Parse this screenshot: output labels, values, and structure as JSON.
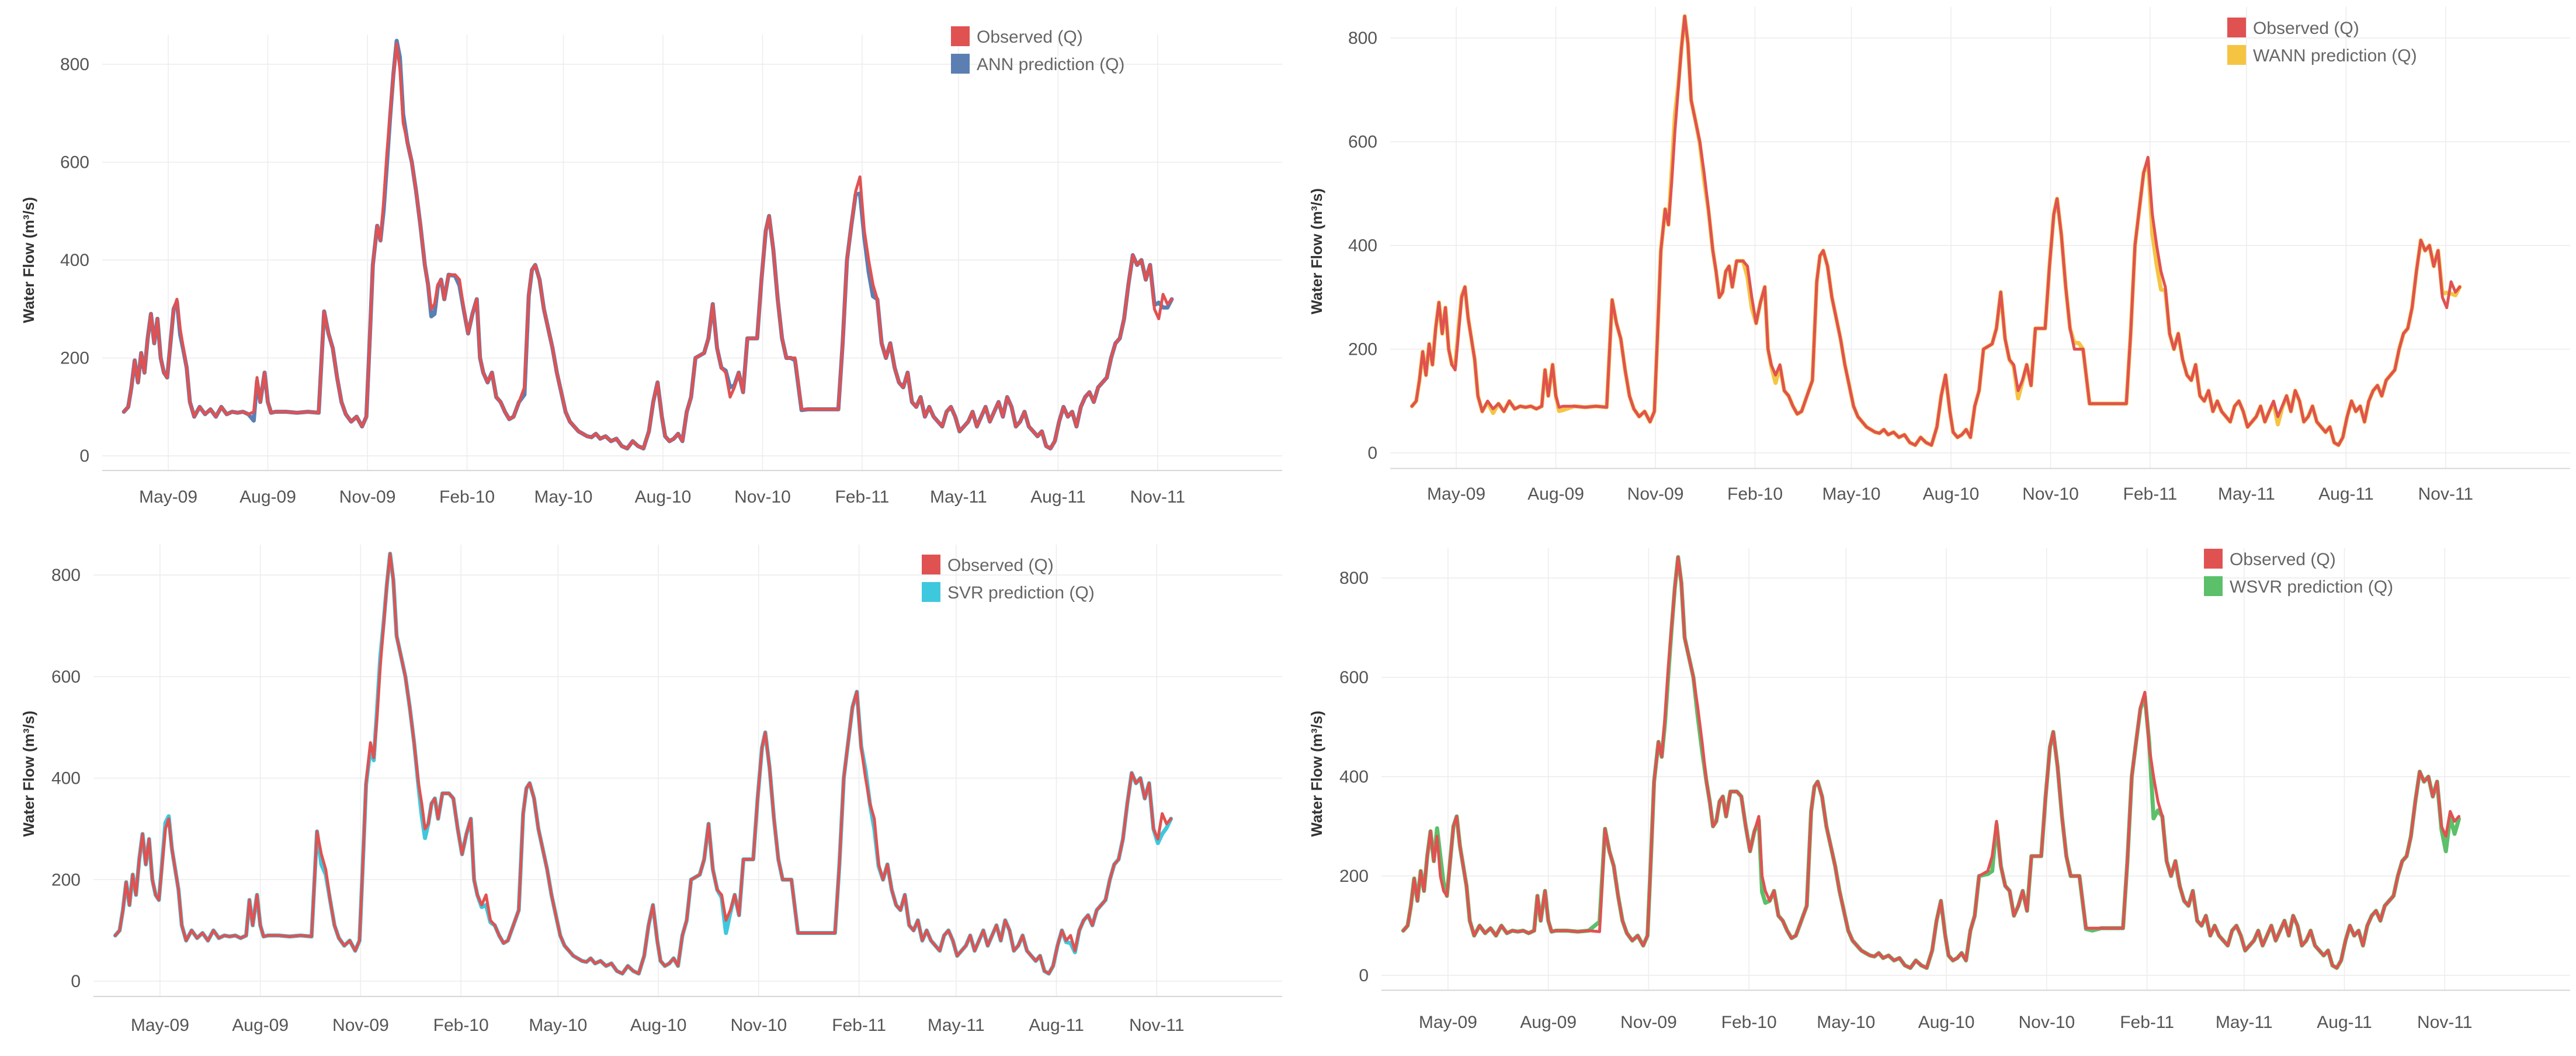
{
  "figure": {
    "background": "#ffffff"
  },
  "chart_data": [
    {
      "type": "line",
      "panel": "top-left",
      "title": "",
      "xlabel": "",
      "ylabel": "Water Flow (m³/s)",
      "ylim": [
        -30,
        860
      ],
      "yticks": [
        0,
        200,
        400,
        600,
        800
      ],
      "xlim": [
        0,
        1090
      ],
      "x_unit": "days since 2009-03-01",
      "xticks": [
        {
          "x": 61,
          "label": "May-09"
        },
        {
          "x": 153,
          "label": "Aug-09"
        },
        {
          "x": 245,
          "label": "Nov-09"
        },
        {
          "x": 337,
          "label": "Feb-10"
        },
        {
          "x": 426,
          "label": "May-10"
        },
        {
          "x": 518,
          "label": "Aug-10"
        },
        {
          "x": 610,
          "label": "Nov-10"
        },
        {
          "x": 702,
          "label": "Feb-11"
        },
        {
          "x": 791,
          "label": "May-11"
        },
        {
          "x": 883,
          "label": "Aug-11"
        },
        {
          "x": 975,
          "label": "Nov-11"
        }
      ],
      "legend": "top-right",
      "series": [
        {
          "name": "Observed (Q)",
          "color": "#e05252",
          "role": "observed"
        },
        {
          "name": "ANN prediction (Q)",
          "color": "#5b7fb2",
          "role": "prediction"
        }
      ]
    },
    {
      "type": "line",
      "panel": "top-right",
      "title": "",
      "xlabel": "",
      "ylabel": "Water Flow (m³/s)",
      "ylim": [
        -30,
        860
      ],
      "yticks": [
        0,
        200,
        400,
        600,
        800
      ],
      "xlim": [
        0,
        1090
      ],
      "x_unit": "days since 2009-03-01",
      "xticks": [
        {
          "x": 61,
          "label": "May-09"
        },
        {
          "x": 153,
          "label": "Aug-09"
        },
        {
          "x": 245,
          "label": "Nov-09"
        },
        {
          "x": 337,
          "label": "Feb-10"
        },
        {
          "x": 426,
          "label": "May-10"
        },
        {
          "x": 518,
          "label": "Aug-10"
        },
        {
          "x": 610,
          "label": "Nov-10"
        },
        {
          "x": 702,
          "label": "Feb-11"
        },
        {
          "x": 791,
          "label": "May-11"
        },
        {
          "x": 883,
          "label": "Aug-11"
        },
        {
          "x": 975,
          "label": "Nov-11"
        }
      ],
      "legend": "top-right",
      "series": [
        {
          "name": "Observed (Q)",
          "color": "#e05252",
          "role": "observed"
        },
        {
          "name": "WANN prediction (Q)",
          "color": "#f5c443",
          "role": "prediction"
        }
      ]
    },
    {
      "type": "line",
      "panel": "bottom-left",
      "title": "",
      "xlabel": "",
      "ylabel": "Water Flow (m³/s)",
      "ylim": [
        -30,
        860
      ],
      "yticks": [
        0,
        200,
        400,
        600,
        800
      ],
      "xlim": [
        0,
        1090
      ],
      "x_unit": "days since 2009-03-01",
      "xticks": [
        {
          "x": 61,
          "label": "May-09"
        },
        {
          "x": 153,
          "label": "Aug-09"
        },
        {
          "x": 245,
          "label": "Nov-09"
        },
        {
          "x": 337,
          "label": "Feb-10"
        },
        {
          "x": 426,
          "label": "May-10"
        },
        {
          "x": 518,
          "label": "Aug-10"
        },
        {
          "x": 610,
          "label": "Nov-10"
        },
        {
          "x": 702,
          "label": "Feb-11"
        },
        {
          "x": 791,
          "label": "May-11"
        },
        {
          "x": 883,
          "label": "Aug-11"
        },
        {
          "x": 975,
          "label": "Nov-11"
        }
      ],
      "legend": "top-right",
      "series": [
        {
          "name": "Observed (Q)",
          "color": "#e05252",
          "role": "observed"
        },
        {
          "name": "SVR prediction (Q)",
          "color": "#3ec8dd",
          "role": "prediction"
        }
      ]
    },
    {
      "type": "line",
      "panel": "bottom-right",
      "title": "",
      "xlabel": "",
      "ylabel": "Water Flow (m³/s)",
      "ylim": [
        -30,
        860
      ],
      "yticks": [
        0,
        200,
        400,
        600,
        800
      ],
      "xlim": [
        0,
        1090
      ],
      "x_unit": "days since 2009-03-01",
      "xticks": [
        {
          "x": 61,
          "label": "May-09"
        },
        {
          "x": 153,
          "label": "Aug-09"
        },
        {
          "x": 245,
          "label": "Nov-09"
        },
        {
          "x": 337,
          "label": "Feb-10"
        },
        {
          "x": 426,
          "label": "May-10"
        },
        {
          "x": 518,
          "label": "Aug-10"
        },
        {
          "x": 610,
          "label": "Nov-10"
        },
        {
          "x": 702,
          "label": "Feb-11"
        },
        {
          "x": 791,
          "label": "May-11"
        },
        {
          "x": 883,
          "label": "Aug-11"
        },
        {
          "x": 975,
          "label": "Nov-11"
        }
      ],
      "legend": "top-right",
      "series": [
        {
          "name": "Observed (Q)",
          "color": "#e05252",
          "role": "observed"
        },
        {
          "name": "WSVR prediction (Q)",
          "color": "#5cbf6a",
          "role": "prediction"
        }
      ]
    }
  ],
  "observed_series": {
    "x_unit": "days since 2009-03-01",
    "points": [
      [
        20,
        90
      ],
      [
        24,
        100
      ],
      [
        27,
        140
      ],
      [
        30,
        195
      ],
      [
        33,
        150
      ],
      [
        36,
        210
      ],
      [
        39,
        170
      ],
      [
        42,
        240
      ],
      [
        45,
        290
      ],
      [
        48,
        230
      ],
      [
        51,
        280
      ],
      [
        54,
        200
      ],
      [
        57,
        170
      ],
      [
        60,
        160
      ],
      [
        63,
        230
      ],
      [
        66,
        300
      ],
      [
        69,
        320
      ],
      [
        72,
        260
      ],
      [
        75,
        220
      ],
      [
        78,
        180
      ],
      [
        81,
        110
      ],
      [
        85,
        80
      ],
      [
        90,
        100
      ],
      [
        95,
        85
      ],
      [
        100,
        95
      ],
      [
        105,
        80
      ],
      [
        110,
        100
      ],
      [
        115,
        85
      ],
      [
        120,
        90
      ],
      [
        125,
        88
      ],
      [
        130,
        90
      ],
      [
        135,
        85
      ],
      [
        140,
        90
      ],
      [
        143,
        160
      ],
      [
        146,
        110
      ],
      [
        150,
        170
      ],
      [
        153,
        110
      ],
      [
        156,
        88
      ],
      [
        160,
        90
      ],
      [
        170,
        90
      ],
      [
        180,
        88
      ],
      [
        190,
        90
      ],
      [
        200,
        88
      ],
      [
        205,
        295
      ],
      [
        209,
        250
      ],
      [
        213,
        220
      ],
      [
        217,
        160
      ],
      [
        221,
        110
      ],
      [
        225,
        85
      ],
      [
        230,
        70
      ],
      [
        235,
        80
      ],
      [
        240,
        60
      ],
      [
        244,
        80
      ],
      [
        247,
        230
      ],
      [
        250,
        390
      ],
      [
        254,
        470
      ],
      [
        257,
        440
      ],
      [
        260,
        520
      ],
      [
        263,
        620
      ],
      [
        266,
        700
      ],
      [
        269,
        780
      ],
      [
        272,
        842
      ],
      [
        275,
        790
      ],
      [
        278,
        680
      ],
      [
        282,
        640
      ],
      [
        286,
        600
      ],
      [
        290,
        540
      ],
      [
        294,
        470
      ],
      [
        298,
        390
      ],
      [
        301,
        350
      ],
      [
        304,
        300
      ],
      [
        307,
        310
      ],
      [
        310,
        350
      ],
      [
        313,
        360
      ],
      [
        316,
        320
      ],
      [
        320,
        370
      ],
      [
        326,
        370
      ],
      [
        330,
        360
      ],
      [
        334,
        300
      ],
      [
        338,
        250
      ],
      [
        342,
        290
      ],
      [
        346,
        320
      ],
      [
        349,
        200
      ],
      [
        352,
        170
      ],
      [
        356,
        150
      ],
      [
        360,
        170
      ],
      [
        364,
        120
      ],
      [
        368,
        110
      ],
      [
        372,
        90
      ],
      [
        376,
        75
      ],
      [
        380,
        80
      ],
      [
        385,
        110
      ],
      [
        390,
        140
      ],
      [
        394,
        330
      ],
      [
        397,
        380
      ],
      [
        400,
        390
      ],
      [
        404,
        360
      ],
      [
        408,
        300
      ],
      [
        412,
        260
      ],
      [
        416,
        220
      ],
      [
        420,
        170
      ],
      [
        424,
        130
      ],
      [
        428,
        90
      ],
      [
        432,
        70
      ],
      [
        436,
        60
      ],
      [
        440,
        50
      ],
      [
        444,
        45
      ],
      [
        448,
        40
      ],
      [
        452,
        38
      ],
      [
        456,
        45
      ],
      [
        460,
        35
      ],
      [
        465,
        40
      ],
      [
        470,
        30
      ],
      [
        475,
        35
      ],
      [
        480,
        20
      ],
      [
        485,
        15
      ],
      [
        490,
        30
      ],
      [
        495,
        20
      ],
      [
        500,
        15
      ],
      [
        505,
        50
      ],
      [
        509,
        110
      ],
      [
        513,
        150
      ],
      [
        517,
        80
      ],
      [
        520,
        40
      ],
      [
        524,
        30
      ],
      [
        528,
        35
      ],
      [
        532,
        45
      ],
      [
        536,
        30
      ],
      [
        540,
        90
      ],
      [
        544,
        120
      ],
      [
        548,
        200
      ],
      [
        556,
        210
      ],
      [
        560,
        240
      ],
      [
        564,
        310
      ],
      [
        568,
        220
      ],
      [
        572,
        180
      ],
      [
        576,
        170
      ],
      [
        580,
        120
      ],
      [
        584,
        140
      ],
      [
        588,
        170
      ],
      [
        592,
        130
      ],
      [
        596,
        240
      ],
      [
        600,
        240
      ],
      [
        605,
        240
      ],
      [
        609,
        360
      ],
      [
        613,
        460
      ],
      [
        616,
        490
      ],
      [
        620,
        420
      ],
      [
        624,
        320
      ],
      [
        628,
        240
      ],
      [
        632,
        200
      ],
      [
        636,
        200
      ],
      [
        640,
        200
      ],
      [
        646,
        95
      ],
      [
        652,
        95
      ],
      [
        660,
        95
      ],
      [
        668,
        95
      ],
      [
        675,
        95
      ],
      [
        680,
        95
      ],
      [
        684,
        230
      ],
      [
        688,
        400
      ],
      [
        692,
        470
      ],
      [
        696,
        540
      ],
      [
        700,
        570
      ],
      [
        704,
        460
      ],
      [
        708,
        400
      ],
      [
        712,
        350
      ],
      [
        716,
        320
      ],
      [
        720,
        230
      ],
      [
        724,
        200
      ],
      [
        728,
        230
      ],
      [
        732,
        180
      ],
      [
        736,
        150
      ],
      [
        740,
        140
      ],
      [
        744,
        170
      ],
      [
        748,
        110
      ],
      [
        752,
        100
      ],
      [
        756,
        120
      ],
      [
        760,
        80
      ],
      [
        764,
        100
      ],
      [
        768,
        80
      ],
      [
        772,
        70
      ],
      [
        776,
        60
      ],
      [
        780,
        90
      ],
      [
        784,
        100
      ],
      [
        788,
        80
      ],
      [
        792,
        50
      ],
      [
        796,
        60
      ],
      [
        800,
        70
      ],
      [
        804,
        90
      ],
      [
        808,
        60
      ],
      [
        812,
        80
      ],
      [
        816,
        100
      ],
      [
        820,
        70
      ],
      [
        824,
        90
      ],
      [
        828,
        110
      ],
      [
        832,
        80
      ],
      [
        836,
        120
      ],
      [
        840,
        100
      ],
      [
        844,
        60
      ],
      [
        848,
        70
      ],
      [
        852,
        90
      ],
      [
        856,
        60
      ],
      [
        860,
        50
      ],
      [
        864,
        40
      ],
      [
        868,
        50
      ],
      [
        872,
        20
      ],
      [
        876,
        15
      ],
      [
        880,
        30
      ],
      [
        884,
        70
      ],
      [
        888,
        100
      ],
      [
        892,
        80
      ],
      [
        896,
        90
      ],
      [
        900,
        60
      ],
      [
        904,
        100
      ],
      [
        908,
        120
      ],
      [
        912,
        130
      ],
      [
        916,
        110
      ],
      [
        920,
        140
      ],
      [
        924,
        150
      ],
      [
        928,
        160
      ],
      [
        932,
        200
      ],
      [
        936,
        230
      ],
      [
        940,
        240
      ],
      [
        944,
        280
      ],
      [
        948,
        350
      ],
      [
        952,
        410
      ],
      [
        956,
        390
      ],
      [
        960,
        400
      ],
      [
        964,
        360
      ],
      [
        968,
        390
      ],
      [
        972,
        300
      ],
      [
        976,
        280
      ],
      [
        980,
        330
      ],
      [
        984,
        310
      ],
      [
        988,
        320
      ]
    ]
  },
  "prediction_offsets": [
    [
      [
        72,
        -12
      ],
      [
        140,
        -18
      ],
      [
        262,
        -30
      ],
      [
        276,
        30
      ],
      [
        306,
        -25
      ],
      [
        330,
        -12
      ],
      [
        390,
        -15
      ],
      [
        580,
        20
      ],
      [
        642,
        -8
      ],
      [
        700,
        -30
      ],
      [
        703,
        -10
      ],
      [
        710,
        -40
      ],
      [
        976,
        40
      ],
      [
        980,
        -35
      ]
    ],
    [
      [
        62,
        12
      ],
      [
        94,
        -10
      ],
      [
        158,
        -12
      ],
      [
        262,
        40
      ],
      [
        290,
        -15
      ],
      [
        332,
        -35
      ],
      [
        356,
        -15
      ],
      [
        580,
        -15
      ],
      [
        634,
        20
      ],
      [
        702,
        -12
      ],
      [
        706,
        -50
      ],
      [
        712,
        -35
      ],
      [
        820,
        -15
      ],
      [
        976,
        35
      ],
      [
        980,
        -30
      ]
    ],
    [
      [
        66,
        12
      ],
      [
        210,
        -25
      ],
      [
        254,
        -12
      ],
      [
        262,
        22
      ],
      [
        302,
        -30
      ],
      [
        360,
        -20
      ],
      [
        580,
        -25
      ],
      [
        708,
        15
      ],
      [
        716,
        -20
      ],
      [
        896,
        -15
      ],
      [
        980,
        -40
      ]
    ],
    [
      [
        54,
        40
      ],
      [
        200,
        20
      ],
      [
        262,
        -20
      ],
      [
        292,
        -30
      ],
      [
        350,
        -40
      ],
      [
        560,
        -30
      ],
      [
        650,
        -8
      ],
      [
        700,
        -15
      ],
      [
        704,
        30
      ],
      [
        708,
        -90
      ],
      [
        976,
        -30
      ],
      [
        984,
        -25
      ]
    ]
  ],
  "legend_labels": [
    [
      "Observed (Q)",
      "ANN prediction (Q)"
    ],
    [
      "Observed (Q)",
      "WANN prediction (Q)"
    ],
    [
      "Observed (Q)",
      "SVR prediction (Q)"
    ],
    [
      "Observed (Q)",
      "WSVR prediction (Q)"
    ]
  ]
}
